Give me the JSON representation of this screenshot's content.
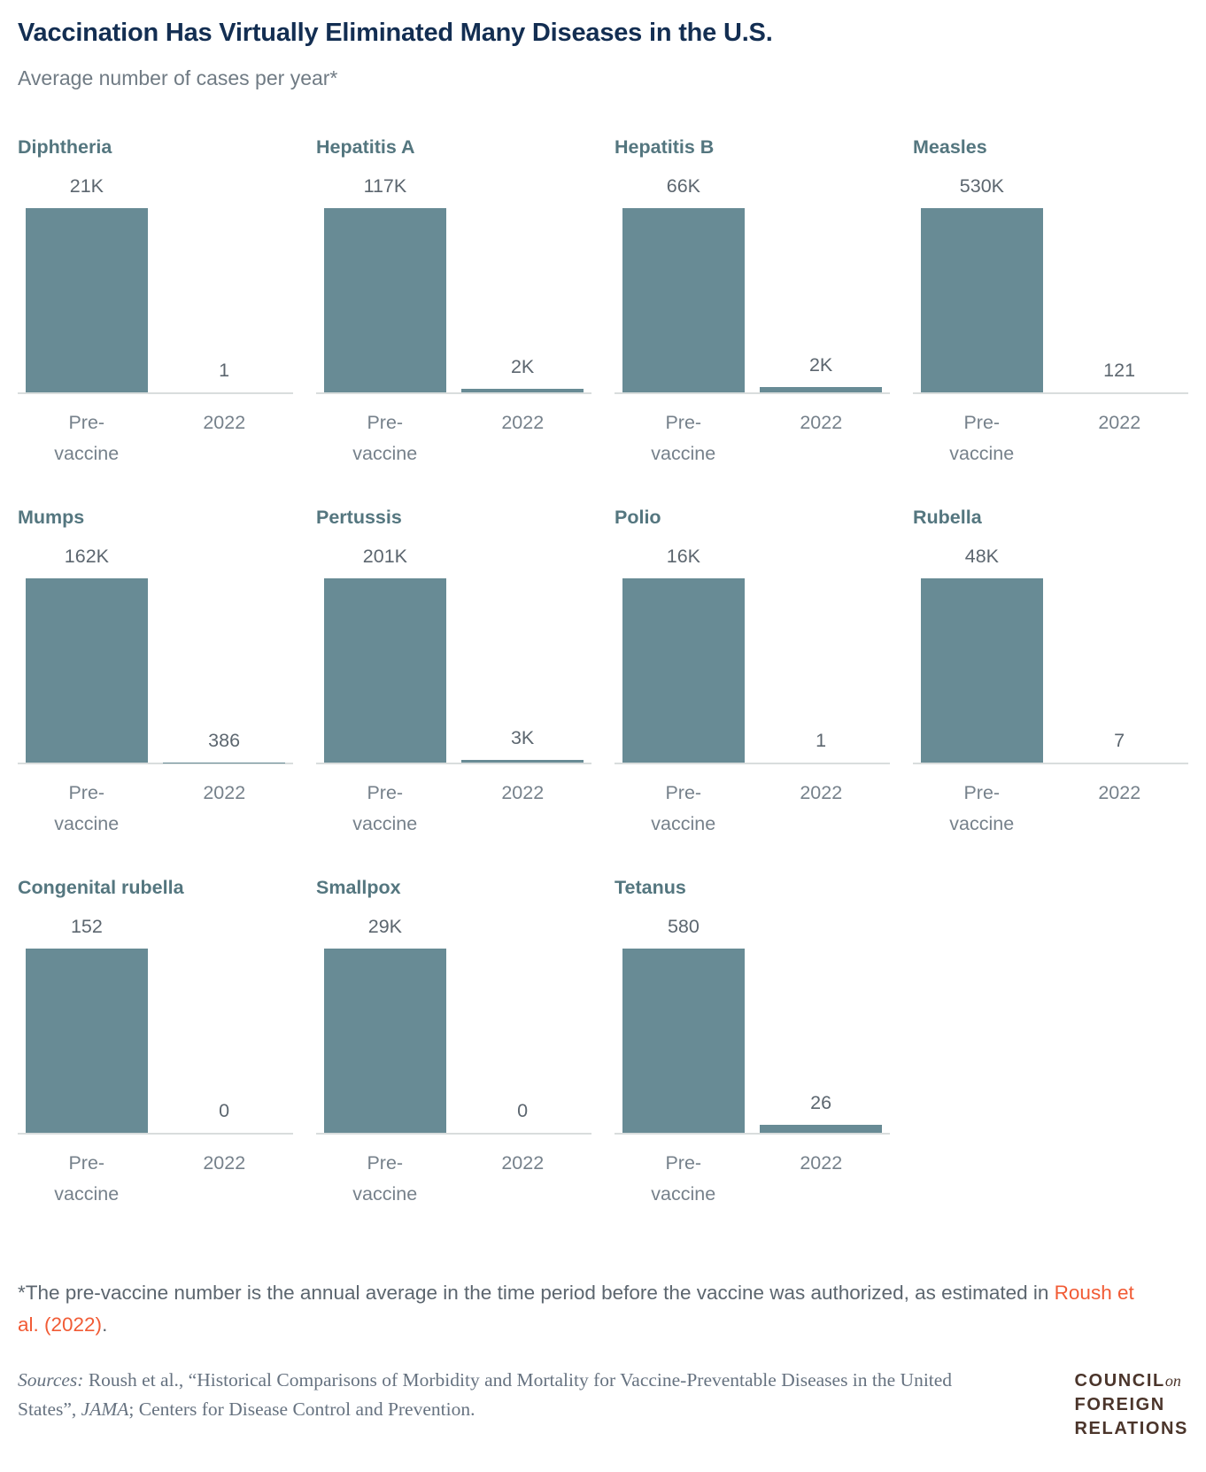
{
  "header": {
    "title": "Vaccination Has Virtually Eliminated Many Diseases in the U.S.",
    "subtitle": "Average number of cases per year*"
  },
  "chart_data": {
    "type": "bar",
    "layout": "small-multiples",
    "title": "Vaccination Has Virtually Eliminated Many Diseases in the U.S.",
    "subtitle": "Average number of cases per year*",
    "unit": "average cases per year",
    "grid": false,
    "categories": [
      "Pre-vaccine",
      "2022"
    ],
    "x_ticks": [
      {
        "lines": [
          "Pre-",
          "vaccine"
        ]
      },
      {
        "lines": [
          "2022"
        ]
      }
    ],
    "charts": [
      {
        "disease": "Diphtheria",
        "values": {
          "pre_vaccine": 21000,
          "y2022": 1
        },
        "labels": {
          "pre_vaccine": "21K",
          "y2022": "1"
        }
      },
      {
        "disease": "Hepatitis A",
        "values": {
          "pre_vaccine": 117000,
          "y2022": 2000
        },
        "labels": {
          "pre_vaccine": "117K",
          "y2022": "2K"
        }
      },
      {
        "disease": "Hepatitis B",
        "values": {
          "pre_vaccine": 66000,
          "y2022": 2000
        },
        "labels": {
          "pre_vaccine": "66K",
          "y2022": "2K"
        }
      },
      {
        "disease": "Measles",
        "values": {
          "pre_vaccine": 530000,
          "y2022": 121
        },
        "labels": {
          "pre_vaccine": "530K",
          "y2022": "121"
        }
      },
      {
        "disease": "Mumps",
        "values": {
          "pre_vaccine": 162000,
          "y2022": 386
        },
        "labels": {
          "pre_vaccine": "162K",
          "y2022": "386"
        }
      },
      {
        "disease": "Pertussis",
        "values": {
          "pre_vaccine": 201000,
          "y2022": 3000
        },
        "labels": {
          "pre_vaccine": "201K",
          "y2022": "3K"
        }
      },
      {
        "disease": "Polio",
        "values": {
          "pre_vaccine": 16000,
          "y2022": 1
        },
        "labels": {
          "pre_vaccine": "16K",
          "y2022": "1"
        }
      },
      {
        "disease": "Rubella",
        "values": {
          "pre_vaccine": 48000,
          "y2022": 7
        },
        "labels": {
          "pre_vaccine": "48K",
          "y2022": "7"
        }
      },
      {
        "disease": "Congenital rubella",
        "values": {
          "pre_vaccine": 152,
          "y2022": 0
        },
        "labels": {
          "pre_vaccine": "152",
          "y2022": "0"
        }
      },
      {
        "disease": "Smallpox",
        "values": {
          "pre_vaccine": 29000,
          "y2022": 0
        },
        "labels": {
          "pre_vaccine": "29K",
          "y2022": "0"
        }
      },
      {
        "disease": "Tetanus",
        "values": {
          "pre_vaccine": 580,
          "y2022": 26
        },
        "labels": {
          "pre_vaccine": "580",
          "y2022": "26"
        }
      }
    ]
  },
  "footnote": {
    "prefix": "*The pre-vaccine number is the annual average in the time period before the vaccine was authorized, as estimated in ",
    "link_text": "Roush et al. (2022)",
    "suffix": "."
  },
  "sources": {
    "label": "Sources:",
    "part1": " Roush et al., “Historical Comparisons of Morbidity and Mortality for Vaccine-Preventable Diseases in the United States”, ",
    "journal": "JAMA",
    "part2": "; Centers for Disease Control and Prevention."
  },
  "logo": {
    "line1": "COUNCIL",
    "line1_suffix": "on",
    "line2": "FOREIGN",
    "line3": "RELATIONS"
  },
  "colors": {
    "bar": "#688B95",
    "title_navy": "#132E52",
    "disease_teal": "#54767F",
    "text_gray": "#5C666F",
    "tick_gray": "#76818B",
    "axis_line": "#D9DDDD",
    "link_orange": "#F15B35",
    "logo_brown": "#4B352B"
  }
}
